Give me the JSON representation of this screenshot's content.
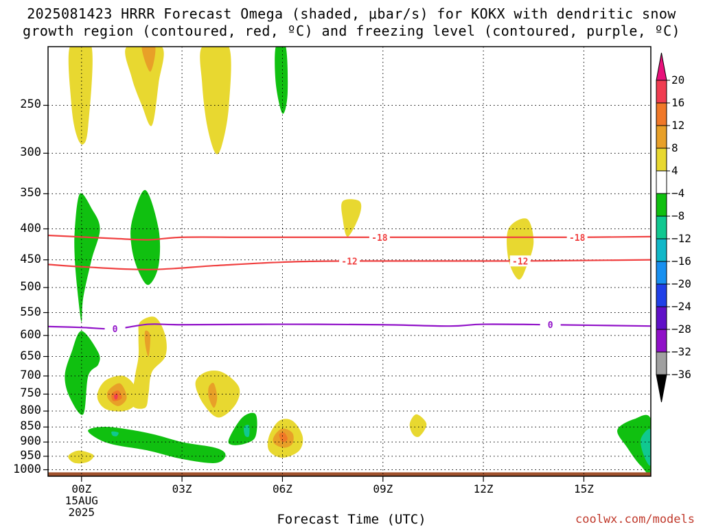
{
  "title_line1": "2025081423 HRRR Forecast Omega (shaded, μbar/s) for KOKX with dendritic snow",
  "title_line2": "growth region (contoured, red, ºC) and freezing level (contoured, purple, ºC)",
  "credit": "coolwx.com/models",
  "chart_data": {
    "type": "area",
    "xlabel": "Forecast Time (UTC)",
    "ylabel": "",
    "x_ticks": [
      {
        "hour": 0,
        "label": "00Z",
        "sub1": "15AUG",
        "sub2": "2025"
      },
      {
        "hour": 3,
        "label": "03Z"
      },
      {
        "hour": 6,
        "label": "06Z"
      },
      {
        "hour": 9,
        "label": "09Z"
      },
      {
        "hour": 12,
        "label": "12Z"
      },
      {
        "hour": 15,
        "label": "15Z"
      }
    ],
    "xlim": [
      -1,
      17
    ],
    "y_ticks": [
      250,
      300,
      350,
      400,
      450,
      500,
      550,
      600,
      650,
      700,
      750,
      800,
      850,
      900,
      950,
      1000
    ],
    "ylim": [
      200,
      1025
    ],
    "y_scale": "log-pressure",
    "grid": true,
    "colorbar": {
      "units": "μbar/s",
      "labels": [
        "20",
        "16",
        "12",
        "8",
        "4",
        "−4",
        "−8",
        "−12",
        "−16",
        "−20",
        "−24",
        "−28",
        "−32",
        "−36"
      ],
      "colors": [
        "#f03c50",
        "#f07828",
        "#e8a028",
        "#e8d830",
        "#ffffff",
        "#10c010",
        "#10c890",
        "#10b8c8",
        "#1890f0",
        "#2040e8",
        "#6010c8",
        "#9010c8",
        "#a0a0a0"
      ],
      "top_arrow_color": "#e8107a",
      "bottom_arrow_color": "#000000"
    },
    "contours": [
      {
        "name": "-18",
        "color": "#f04040",
        "label_hours": [
          8.9,
          14.8
        ],
        "points": [
          [
            -1,
            410
          ],
          [
            1,
            415
          ],
          [
            2,
            417
          ],
          [
            3,
            413
          ],
          [
            5,
            413
          ],
          [
            8,
            413
          ],
          [
            12,
            413
          ],
          [
            15,
            413
          ],
          [
            17,
            412
          ]
        ]
      },
      {
        "name": "-12",
        "color": "#f04040",
        "label_hours": [
          8.0,
          13.1
        ],
        "points": [
          [
            -1,
            458
          ],
          [
            0,
            462
          ],
          [
            2,
            467
          ],
          [
            4,
            460
          ],
          [
            6,
            454
          ],
          [
            8,
            452
          ],
          [
            13,
            452
          ],
          [
            17,
            450
          ]
        ]
      },
      {
        "name": "0",
        "color": "#9010c8",
        "label_hours": [
          1.0,
          14.0
        ],
        "points": [
          [
            -1,
            580
          ],
          [
            0,
            582
          ],
          [
            1,
            585
          ],
          [
            2,
            575
          ],
          [
            3,
            576
          ],
          [
            6,
            575
          ],
          [
            9,
            576
          ],
          [
            11,
            579
          ],
          [
            12,
            575
          ],
          [
            14,
            576
          ],
          [
            17,
            579
          ]
        ]
      }
    ],
    "omega_features": [
      {
        "color": "#e8d830",
        "points": [
          [
            -0.35,
            200
          ],
          [
            0.3,
            200
          ],
          [
            0.2,
            270
          ],
          [
            0.05,
            290
          ],
          [
            -0.15,
            280
          ],
          [
            -0.3,
            250
          ]
        ]
      },
      {
        "color": "#e8d830",
        "points": [
          [
            1.35,
            200
          ],
          [
            2.4,
            200
          ],
          [
            2.3,
            230
          ],
          [
            2.1,
            270
          ],
          [
            1.8,
            250
          ],
          [
            1.5,
            225
          ]
        ]
      },
      {
        "color": "#e8a028",
        "points": [
          [
            1.8,
            200
          ],
          [
            2.2,
            200
          ],
          [
            2.05,
            220
          ]
        ]
      },
      {
        "color": "#e8d830",
        "points": [
          [
            3.6,
            200
          ],
          [
            4.4,
            200
          ],
          [
            4.4,
            250
          ],
          [
            4.2,
            290
          ],
          [
            4.0,
            300
          ],
          [
            3.75,
            270
          ],
          [
            3.6,
            230
          ]
        ]
      },
      {
        "color": "#10c010",
        "points": [
          [
            5.8,
            200
          ],
          [
            6.1,
            200
          ],
          [
            6.15,
            240
          ],
          [
            6.0,
            258
          ],
          [
            5.8,
            230
          ]
        ]
      },
      {
        "color": "#e8d830",
        "points": [
          [
            7.8,
            360
          ],
          [
            8.3,
            360
          ],
          [
            8.3,
            380
          ],
          [
            7.95,
            412
          ],
          [
            7.8,
            385
          ]
        ]
      },
      {
        "color": "#e8d830",
        "points": [
          [
            12.75,
            400
          ],
          [
            13.3,
            385
          ],
          [
            13.5,
            420
          ],
          [
            13.3,
            460
          ],
          [
            13.05,
            485
          ],
          [
            12.75,
            450
          ]
        ]
      },
      {
        "color": "#10c010",
        "points": [
          [
            -0.2,
            400
          ],
          [
            -0.05,
            350
          ],
          [
            0.3,
            370
          ],
          [
            0.55,
            400
          ],
          [
            0.3,
            450
          ],
          [
            0.05,
            520
          ],
          [
            0.0,
            570
          ],
          [
            -0.1,
            520
          ],
          [
            -0.2,
            450
          ]
        ]
      },
      {
        "color": "#10c010",
        "points": [
          [
            1.5,
            390
          ],
          [
            1.9,
            345
          ],
          [
            2.3,
            400
          ],
          [
            2.3,
            460
          ],
          [
            2.0,
            495
          ],
          [
            1.7,
            470
          ],
          [
            1.5,
            430
          ]
        ]
      },
      {
        "color": "#e8d830",
        "points": [
          [
            1.7,
            600
          ],
          [
            1.75,
            570
          ],
          [
            2.2,
            560
          ],
          [
            2.5,
            600
          ],
          [
            2.5,
            650
          ],
          [
            2.1,
            690
          ],
          [
            2.0,
            750
          ],
          [
            1.9,
            790
          ],
          [
            1.5,
            780
          ],
          [
            1.6,
            700
          ],
          [
            1.7,
            650
          ]
        ]
      },
      {
        "color": "#e8a028",
        "points": [
          [
            1.9,
            590
          ],
          [
            2.05,
            600
          ],
          [
            2.0,
            650
          ],
          [
            1.9,
            620
          ]
        ]
      },
      {
        "color": "#10c010",
        "points": [
          [
            -0.5,
            700
          ],
          [
            -0.3,
            640
          ],
          [
            0.0,
            590
          ],
          [
            0.5,
            640
          ],
          [
            0.5,
            670
          ],
          [
            0.2,
            700
          ],
          [
            0.05,
            810
          ],
          [
            -0.35,
            760
          ]
        ]
      },
      {
        "color": "#e8d830",
        "points": [
          [
            0.5,
            740
          ],
          [
            0.75,
            710
          ],
          [
            1.25,
            700
          ],
          [
            1.6,
            730
          ],
          [
            1.6,
            780
          ],
          [
            1.25,
            800
          ],
          [
            0.75,
            795
          ],
          [
            0.5,
            770
          ]
        ]
      },
      {
        "color": "#e8a028",
        "points": [
          [
            0.8,
            740
          ],
          [
            1.15,
            720
          ],
          [
            1.35,
            760
          ],
          [
            1.1,
            785
          ],
          [
            0.8,
            765
          ]
        ]
      },
      {
        "color": "#f07828",
        "points": [
          [
            0.9,
            750
          ],
          [
            1.1,
            740
          ],
          [
            1.2,
            762
          ],
          [
            0.95,
            770
          ]
        ]
      },
      {
        "color": "#f03c50",
        "points": [
          [
            0.98,
            752
          ],
          [
            1.08,
            752
          ],
          [
            1.06,
            764
          ],
          [
            0.99,
            764
          ]
        ]
      },
      {
        "color": "#e8d830",
        "points": [
          [
            3.4,
            720
          ],
          [
            3.7,
            690
          ],
          [
            4.2,
            690
          ],
          [
            4.7,
            730
          ],
          [
            4.6,
            780
          ],
          [
            4.1,
            820
          ],
          [
            3.65,
            780
          ]
        ]
      },
      {
        "color": "#e8a028",
        "points": [
          [
            3.8,
            730
          ],
          [
            3.95,
            720
          ],
          [
            4.05,
            760
          ],
          [
            3.95,
            790
          ],
          [
            3.8,
            760
          ]
        ]
      },
      {
        "color": "#10c010",
        "points": [
          [
            0.2,
            860
          ],
          [
            0.8,
            850
          ],
          [
            2.0,
            870
          ],
          [
            3.0,
            900
          ],
          [
            4.0,
            920
          ],
          [
            4.3,
            945
          ],
          [
            4.0,
            975
          ],
          [
            3.0,
            960
          ],
          [
            2.0,
            930
          ],
          [
            1.0,
            910
          ],
          [
            0.5,
            890
          ]
        ]
      },
      {
        "color": "#10c890",
        "points": [
          [
            0.9,
            865
          ],
          [
            1.1,
            868
          ],
          [
            1.05,
            880
          ],
          [
            0.93,
            878
          ]
        ]
      },
      {
        "color": "#10c010",
        "points": [
          [
            4.4,
            890
          ],
          [
            4.8,
            820
          ],
          [
            5.2,
            810
          ],
          [
            5.2,
            880
          ],
          [
            4.9,
            905
          ],
          [
            4.5,
            910
          ]
        ]
      },
      {
        "color": "#10c890",
        "points": [
          [
            4.85,
            850
          ],
          [
            5.0,
            845
          ],
          [
            5.0,
            880
          ],
          [
            4.88,
            878
          ]
        ]
      },
      {
        "color": "#e8d830",
        "points": [
          [
            5.6,
            880
          ],
          [
            5.9,
            830
          ],
          [
            6.3,
            830
          ],
          [
            6.6,
            880
          ],
          [
            6.5,
            930
          ],
          [
            6.0,
            955
          ],
          [
            5.6,
            930
          ]
        ]
      },
      {
        "color": "#e8a028",
        "points": [
          [
            5.75,
            880
          ],
          [
            6.0,
            855
          ],
          [
            6.3,
            870
          ],
          [
            6.3,
            905
          ],
          [
            6.05,
            920
          ],
          [
            5.75,
            905
          ]
        ]
      },
      {
        "color": "#f07828",
        "points": [
          [
            5.9,
            875
          ],
          [
            6.05,
            868
          ],
          [
            6.15,
            890
          ],
          [
            6.0,
            900
          ]
        ]
      },
      {
        "color": "#e8d830",
        "points": [
          [
            9.8,
            840
          ],
          [
            10.0,
            810
          ],
          [
            10.3,
            840
          ],
          [
            10.1,
            880
          ],
          [
            9.9,
            875
          ]
        ]
      },
      {
        "color": "#e8d830",
        "points": [
          [
            -0.4,
            950
          ],
          [
            -0.1,
            930
          ],
          [
            0.35,
            945
          ],
          [
            0.2,
            970
          ],
          [
            -0.2,
            975
          ]
        ]
      },
      {
        "color": "#10c010",
        "points": [
          [
            16.0,
            860
          ],
          [
            16.5,
            825
          ],
          [
            17.0,
            825
          ],
          [
            17.0,
            1005
          ],
          [
            16.7,
            985
          ],
          [
            16.3,
            920
          ]
        ]
      },
      {
        "color": "#10c890",
        "points": [
          [
            16.7,
            890
          ],
          [
            17.0,
            860
          ],
          [
            17.0,
            980
          ],
          [
            16.8,
            950
          ]
        ]
      }
    ],
    "terrain": {
      "color": "#a0522d",
      "top_pressure": 1010
    }
  }
}
